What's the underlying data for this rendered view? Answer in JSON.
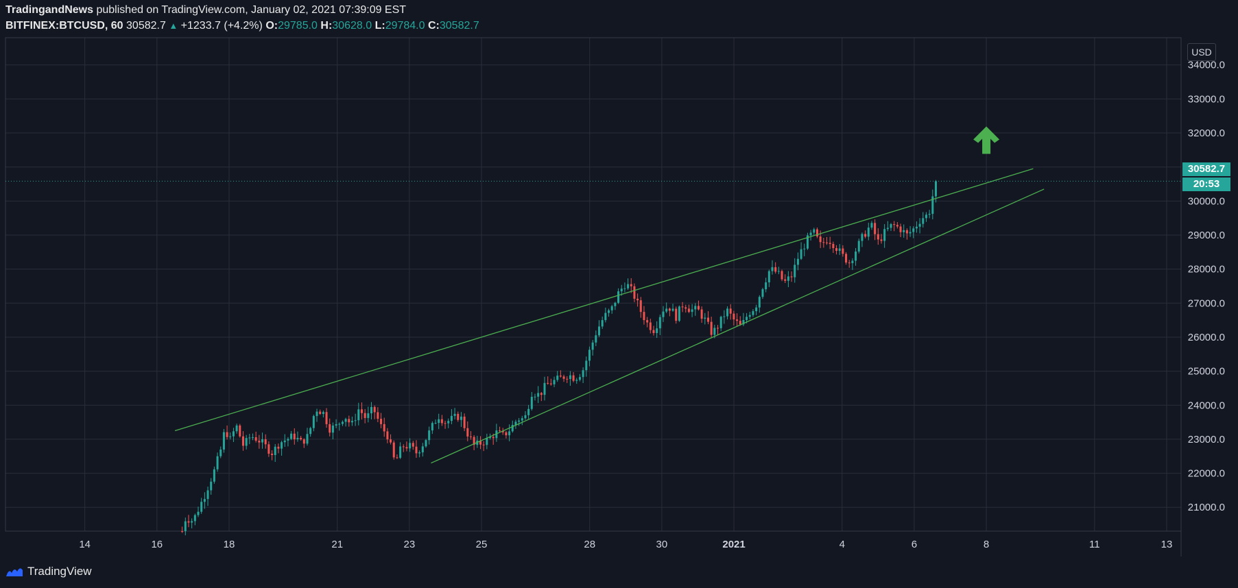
{
  "header": {
    "publisher": "TradingandNews",
    "published_text": "published on TradingView.com, January 02, 2021 07:39:09 EST"
  },
  "symbol_line": {
    "symbol": "BITFINEX:BTCUSD, 60",
    "last": "30582.7",
    "change": "+1233.7 (+4.2%)",
    "o_label": "O:",
    "o": "29785.0",
    "h_label": "H:",
    "h": "30628.0",
    "l_label": "L:",
    "l": "29784.0",
    "c_label": "C:",
    "c": "30582.7"
  },
  "price_axis": {
    "currency": "USD",
    "last_price": "30582.7",
    "countdown": "20:53"
  },
  "footer": {
    "brand": "TradingView"
  },
  "colors": {
    "background": "#131722",
    "up": "#26a69a",
    "down": "#ef5350",
    "trendline": "#4caf50",
    "arrow": "#4caf50",
    "grid": "#2a2e39"
  },
  "chart_data": {
    "type": "candlestick",
    "y_ticks": [
      21000,
      22000,
      23000,
      24000,
      25000,
      26000,
      27000,
      28000,
      29000,
      30000,
      31000,
      32000,
      33000,
      34000
    ],
    "y_tick_labels": [
      "21000.0",
      "22000.0",
      "23000.0",
      "24000.0",
      "25000.0",
      "26000.0",
      "27000.0",
      "28000.0",
      "29000.0",
      "30000.0",
      "31000.0",
      "32000.0",
      "33000.0",
      "34000.0"
    ],
    "ylim": [
      20300,
      34800
    ],
    "x_tick_labels": [
      "14",
      "16",
      "18",
      "21",
      "23",
      "25",
      "28",
      "30",
      "2021",
      "4",
      "6",
      "8",
      "11",
      "13"
    ],
    "x_tick_days": [
      -3,
      -1,
      1,
      4,
      6,
      8,
      11,
      13,
      15,
      18,
      20,
      22,
      25,
      27
    ],
    "xlim": [
      -5.2,
      27.4
    ],
    "last_price": 30582.7,
    "close_path": [
      [
        -0.3,
        20300
      ],
      [
        -0.2,
        20700
      ],
      [
        0.0,
        20600
      ],
      [
        0.3,
        21300
      ],
      [
        0.6,
        22100
      ],
      [
        0.8,
        22800
      ],
      [
        0.9,
        23400
      ],
      [
        1.0,
        22900
      ],
      [
        1.2,
        23400
      ],
      [
        1.4,
        22800
      ],
      [
        1.6,
        23100
      ],
      [
        1.8,
        23000
      ],
      [
        2.0,
        22800
      ],
      [
        2.2,
        22600
      ],
      [
        2.4,
        22900
      ],
      [
        2.6,
        23000
      ],
      [
        2.8,
        23100
      ],
      [
        3.0,
        22900
      ],
      [
        3.2,
        23100
      ],
      [
        3.4,
        23900
      ],
      [
        3.6,
        23800
      ],
      [
        3.8,
        23300
      ],
      [
        4.0,
        23400
      ],
      [
        4.2,
        23700
      ],
      [
        4.4,
        23400
      ],
      [
        4.6,
        23900
      ],
      [
        4.8,
        23600
      ],
      [
        5.0,
        23900
      ],
      [
        5.2,
        23400
      ],
      [
        5.4,
        23100
      ],
      [
        5.6,
        22300
      ],
      [
        5.8,
        22800
      ],
      [
        6.0,
        22800
      ],
      [
        6.2,
        22600
      ],
      [
        6.4,
        22900
      ],
      [
        6.6,
        23300
      ],
      [
        6.8,
        23700
      ],
      [
        7.0,
        23500
      ],
      [
        7.2,
        23600
      ],
      [
        7.4,
        23700
      ],
      [
        7.6,
        23200
      ],
      [
        7.8,
        22800
      ],
      [
        8.0,
        22900
      ],
      [
        8.2,
        23000
      ],
      [
        8.4,
        23200
      ],
      [
        8.6,
        23100
      ],
      [
        8.8,
        23300
      ],
      [
        9.0,
        23600
      ],
      [
        9.2,
        23600
      ],
      [
        9.4,
        24400
      ],
      [
        9.6,
        24300
      ],
      [
        9.8,
        24600
      ],
      [
        10.0,
        24700
      ],
      [
        10.2,
        24800
      ],
      [
        10.4,
        24900
      ],
      [
        10.6,
        24800
      ],
      [
        10.8,
        25000
      ],
      [
        11.0,
        25600
      ],
      [
        11.2,
        26200
      ],
      [
        11.4,
        26600
      ],
      [
        11.6,
        26800
      ],
      [
        11.8,
        27300
      ],
      [
        12.0,
        27600
      ],
      [
        12.2,
        27300
      ],
      [
        12.4,
        26800
      ],
      [
        12.6,
        26400
      ],
      [
        12.8,
        26200
      ],
      [
        13.0,
        26800
      ],
      [
        13.2,
        26900
      ],
      [
        13.4,
        26600
      ],
      [
        13.6,
        27000
      ],
      [
        13.8,
        26800
      ],
      [
        14.0,
        26800
      ],
      [
        14.2,
        26500
      ],
      [
        14.4,
        26100
      ],
      [
        14.6,
        26400
      ],
      [
        14.8,
        26800
      ],
      [
        15.0,
        26500
      ],
      [
        15.2,
        26300
      ],
      [
        15.4,
        26700
      ],
      [
        15.6,
        26900
      ],
      [
        15.8,
        27500
      ],
      [
        16.0,
        28000
      ],
      [
        16.2,
        27900
      ],
      [
        16.4,
        27600
      ],
      [
        16.6,
        27800
      ],
      [
        16.8,
        28400
      ],
      [
        17.0,
        28800
      ],
      [
        17.2,
        29100
      ],
      [
        17.4,
        28700
      ],
      [
        17.6,
        28900
      ],
      [
        17.8,
        28700
      ],
      [
        18.0,
        28400
      ],
      [
        18.2,
        28200
      ],
      [
        18.4,
        28600
      ],
      [
        18.6,
        29000
      ],
      [
        18.8,
        29300
      ],
      [
        19.0,
        28800
      ],
      [
        19.2,
        29100
      ],
      [
        19.4,
        29300
      ],
      [
        19.6,
        29200
      ],
      [
        19.8,
        29000
      ],
      [
        20.0,
        29200
      ],
      [
        20.2,
        29500
      ],
      [
        20.4,
        29600
      ],
      [
        20.6,
        30582.7
      ]
    ],
    "trendlines": [
      {
        "from": [
          -0.5,
          23250
        ],
        "to": [
          23.3,
          30950
        ]
      },
      {
        "from": [
          6.6,
          22300
        ],
        "to": [
          23.6,
          30350
        ]
      }
    ],
    "annotation": {
      "type": "arrow-up",
      "x": 22.0,
      "y": 31750
    }
  }
}
